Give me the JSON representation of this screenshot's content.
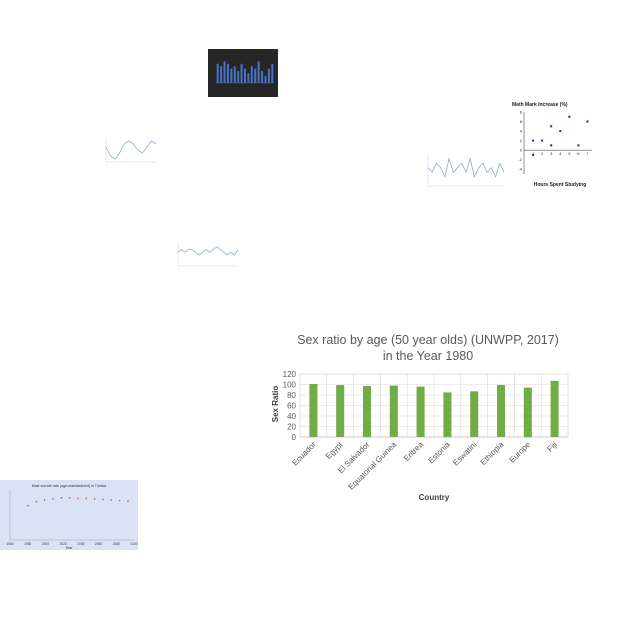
{
  "chart_data": [
    {
      "type": "bar",
      "title": "Sex ratio by age (50 year olds) (UNWPP, 2017)",
      "subtitle": "in the Year 1980",
      "xlabel": "Country",
      "ylabel": "Sex Ratio",
      "categories": [
        "Ecuador",
        "Egypt",
        "El Salvador",
        "Equatorial Guinea",
        "Eritrea",
        "Estonia",
        "Eswatini",
        "Ethiopia",
        "Europe",
        "Fiji"
      ],
      "values": [
        101,
        99,
        97,
        98,
        96,
        85,
        87,
        99,
        94,
        107
      ],
      "ylim": [
        0,
        120
      ],
      "yticks": [
        0,
        20,
        40,
        60,
        80,
        100,
        120
      ],
      "color": "#70ad47",
      "grid": true
    },
    {
      "type": "scatter",
      "title": "Math Mark Increase (%)",
      "xlabel": "Hours Spent Studying",
      "x": [
        1,
        1,
        2,
        3,
        3,
        4,
        5,
        6,
        7
      ],
      "y": [
        -1,
        2,
        2,
        1,
        5,
        4,
        7,
        1,
        6
      ],
      "xlim": [
        0,
        7.5
      ],
      "ylim": [
        -5,
        8
      ],
      "xticks": [
        1,
        2,
        3,
        4,
        5,
        6,
        7
      ],
      "yticks": [
        -4,
        -2,
        0,
        2,
        4,
        6,
        8
      ],
      "color": "#1f1fbf"
    },
    {
      "type": "bar",
      "dark": true,
      "values": [
        8,
        7,
        9,
        8,
        6,
        7,
        5,
        8,
        6,
        4,
        7,
        6,
        9,
        5,
        3,
        6,
        8
      ],
      "ylim": [
        0,
        10
      ],
      "color": "#4472c4"
    },
    {
      "type": "line",
      "values": [
        5,
        2,
        1,
        3,
        6,
        7,
        6,
        4,
        3,
        5,
        7,
        6
      ],
      "ylim": [
        0,
        8
      ],
      "color": "#8eaadb"
    },
    {
      "type": "line",
      "values": [
        4,
        3,
        5,
        4,
        2,
        6,
        3,
        4,
        5,
        3,
        6,
        2,
        4,
        5,
        3,
        4,
        2,
        5,
        3
      ],
      "ylim": [
        0,
        7
      ],
      "color": "#8eaadb"
    },
    {
      "type": "line",
      "values": [
        5,
        6,
        5,
        6,
        6,
        5,
        4,
        5,
        6,
        5,
        6,
        7,
        6,
        5,
        4,
        5,
        4,
        6
      ],
      "ylim": [
        0,
        8
      ],
      "color": "#8eaadb"
    },
    {
      "type": "scatter",
      "title": "Male suicide rate (age-standardized) in Tunisia",
      "xlabel": "Year",
      "xticks": [
        "1960",
        "1980",
        "2000",
        "2020",
        "2040",
        "2060",
        "2080",
        "2100"
      ],
      "x": [
        1,
        2,
        3,
        4,
        5,
        6,
        7,
        8,
        9,
        10,
        11,
        12,
        13
      ],
      "y": [
        6.2,
        6.9,
        7.2,
        7.4,
        7.6,
        7.6,
        7.5,
        7.5,
        7.4,
        7.3,
        7.2,
        7.1,
        7.0
      ],
      "ylim": [
        0,
        9
      ],
      "color": "#c0504d"
    }
  ]
}
